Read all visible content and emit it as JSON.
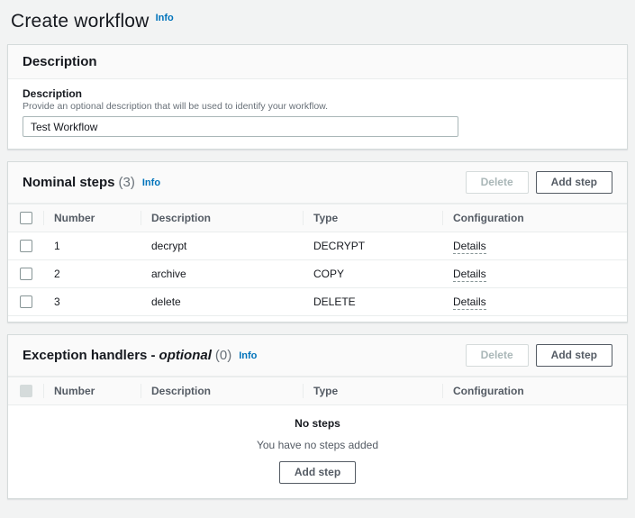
{
  "page": {
    "title": "Create workflow",
    "info_label": "Info"
  },
  "description_panel": {
    "title": "Description",
    "field": {
      "label": "Description",
      "help": "Provide an optional description that will be used to identify your workflow.",
      "value": "Test Workflow"
    }
  },
  "nominal_panel": {
    "title": "Nominal steps",
    "count": "(3)",
    "info_label": "Info",
    "delete_label": "Delete",
    "add_label": "Add step",
    "columns": [
      "Number",
      "Description",
      "Type",
      "Configuration"
    ],
    "rows": [
      {
        "number": "1",
        "description": "decrypt",
        "type": "DECRYPT",
        "configuration": "Details"
      },
      {
        "number": "2",
        "description": "archive",
        "type": "COPY",
        "configuration": "Details"
      },
      {
        "number": "3",
        "description": "delete",
        "type": "DELETE",
        "configuration": "Details"
      }
    ]
  },
  "exception_panel": {
    "title_main": "Exception handlers -",
    "title_optional": "optional",
    "count": "(0)",
    "info_label": "Info",
    "delete_label": "Delete",
    "add_label": "Add step",
    "columns": [
      "Number",
      "Description",
      "Type",
      "Configuration"
    ],
    "empty": {
      "title": "No steps",
      "subtitle": "You have no steps added",
      "action": "Add step"
    }
  },
  "colors": {
    "link_blue": "#0073bb",
    "page_background": "#f2f3f3",
    "panel_border": "#d5dbdb",
    "divider": "#eaeded",
    "header_background": "#fafafa",
    "text_primary": "#16191f",
    "text_secondary": "#687078",
    "button_border": "#545b64",
    "disabled_text": "#aab7b8"
  }
}
